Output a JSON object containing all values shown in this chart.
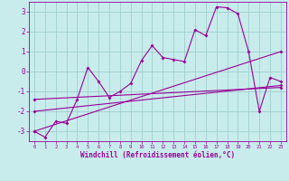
{
  "xlabel": "Windchill (Refroidissement éolien,°C)",
  "xlim": [
    -0.5,
    23.5
  ],
  "ylim": [
    -3.5,
    3.5
  ],
  "yticks": [
    -3,
    -2,
    -1,
    0,
    1,
    2,
    3
  ],
  "xticks": [
    0,
    1,
    2,
    3,
    4,
    5,
    6,
    7,
    8,
    9,
    10,
    11,
    12,
    13,
    14,
    15,
    16,
    17,
    18,
    19,
    20,
    21,
    22,
    23
  ],
  "background_color": "#c8ecec",
  "grid_color": "#a0cece",
  "line_color": "#990099",
  "series1_x": [
    0,
    1,
    2,
    3,
    4,
    5,
    6,
    7,
    8,
    9,
    10,
    11,
    12,
    13,
    14,
    15,
    16,
    17,
    18,
    19,
    20,
    21,
    22,
    23
  ],
  "series1_y": [
    -3.0,
    -3.3,
    -2.5,
    -2.6,
    -1.4,
    0.2,
    -0.5,
    -1.3,
    -1.0,
    -0.6,
    0.55,
    1.3,
    0.7,
    0.6,
    0.5,
    2.1,
    1.8,
    3.25,
    3.2,
    2.9,
    1.0,
    -2.0,
    -0.3,
    -0.5
  ],
  "series2_x": [
    0,
    23
  ],
  "series2_y": [
    -3.0,
    1.0
  ],
  "series3_x": [
    0,
    23
  ],
  "series3_y": [
    -1.4,
    -0.8
  ],
  "series4_x": [
    0,
    23
  ],
  "series4_y": [
    -2.0,
    -0.7
  ]
}
